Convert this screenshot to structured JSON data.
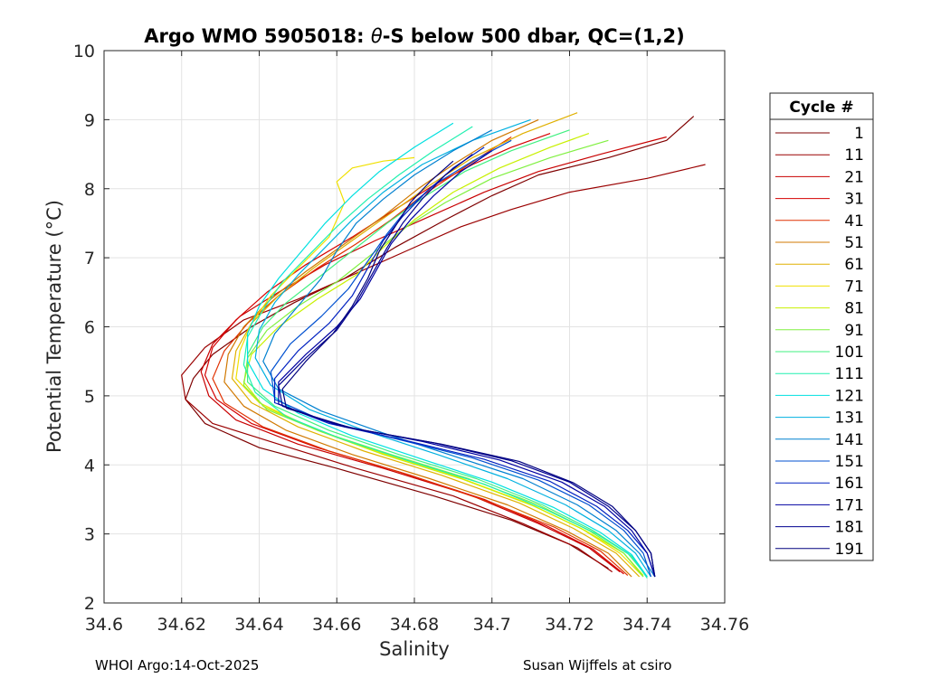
{
  "chart_data": {
    "type": "line",
    "title": "Argo WMO 5905018: θ-S below 500 dbar,  QC=(1,2)",
    "title_prefix": "Argo WMO 5905018: ",
    "title_symbol": "θ",
    "title_suffix": "-S below 500 dbar,  QC=(1,2)",
    "xlabel": "Salinity",
    "ylabel": "Potential Temperature (°C)",
    "xlim": [
      34.6,
      34.76
    ],
    "ylim": [
      2,
      10
    ],
    "xticks": [
      34.6,
      34.62,
      34.64,
      34.66,
      34.68,
      34.7,
      34.72,
      34.74,
      34.76
    ],
    "xtick_labels": [
      "34.6",
      "34.62",
      "34.64",
      "34.66",
      "34.68",
      "34.7",
      "34.72",
      "34.74",
      "34.76"
    ],
    "yticks": [
      2,
      3,
      4,
      5,
      6,
      7,
      8,
      9,
      10
    ],
    "ytick_labels": [
      "2",
      "3",
      "4",
      "5",
      "6",
      "7",
      "8",
      "9",
      "10"
    ],
    "grid": true,
    "legend": {
      "title": "Cycle #",
      "placement": "outside-right",
      "entries": [
        {
          "label": "1",
          "color": "#7f0000"
        },
        {
          "label": "11",
          "color": "#9a0000"
        },
        {
          "label": "21",
          "color": "#c80000"
        },
        {
          "label": "31",
          "color": "#d40000"
        },
        {
          "label": "41",
          "color": "#e03000"
        },
        {
          "label": "51",
          "color": "#d07800"
        },
        {
          "label": "61",
          "color": "#e0b000"
        },
        {
          "label": "71",
          "color": "#f0e000"
        },
        {
          "label": "81",
          "color": "#c8f000"
        },
        {
          "label": "91",
          "color": "#80f040"
        },
        {
          "label": "101",
          "color": "#40f080"
        },
        {
          "label": "111",
          "color": "#20f0b0"
        },
        {
          "label": "121",
          "color": "#00e0e0"
        },
        {
          "label": "131",
          "color": "#00b0e0"
        },
        {
          "label": "141",
          "color": "#0080d0"
        },
        {
          "label": "151",
          "color": "#0050d0"
        },
        {
          "label": "161",
          "color": "#0020c0"
        },
        {
          "label": "171",
          "color": "#0000a0"
        },
        {
          "label": "181",
          "color": "#000090"
        },
        {
          "label": "191",
          "color": "#00007f"
        }
      ]
    },
    "series": [
      {
        "name": "1",
        "color": "#7f0000",
        "x": [
          34.752,
          34.745,
          34.73,
          34.712,
          34.7,
          34.688,
          34.675,
          34.662,
          34.649,
          34.638,
          34.628,
          34.623,
          34.621,
          34.626,
          34.64,
          34.66,
          34.685,
          34.705,
          34.72,
          34.73
        ],
        "y": [
          9.05,
          8.7,
          8.45,
          8.2,
          7.9,
          7.55,
          7.15,
          6.7,
          6.35,
          6.0,
          5.6,
          5.25,
          4.95,
          4.6,
          4.25,
          3.95,
          3.55,
          3.2,
          2.85,
          2.5
        ]
      },
      {
        "name": "11",
        "color": "#9a0000",
        "x": [
          34.755,
          34.74,
          34.72,
          34.705,
          34.692,
          34.678,
          34.664,
          34.65,
          34.636,
          34.626,
          34.62,
          34.621,
          34.628,
          34.645,
          34.665,
          34.69,
          34.708,
          34.722,
          34.731
        ],
        "y": [
          8.35,
          8.15,
          7.95,
          7.7,
          7.45,
          7.1,
          6.75,
          6.4,
          6.1,
          5.7,
          5.3,
          4.95,
          4.6,
          4.3,
          3.95,
          3.55,
          3.15,
          2.8,
          2.45
        ]
      },
      {
        "name": "21",
        "color": "#c80000",
        "x": [
          34.745,
          34.728,
          34.712,
          34.698,
          34.684,
          34.67,
          34.657,
          34.645,
          34.635,
          34.628,
          34.625,
          34.627,
          34.634,
          34.65,
          34.672,
          34.695,
          34.712,
          34.725,
          34.733
        ],
        "y": [
          8.75,
          8.5,
          8.25,
          7.95,
          7.6,
          7.25,
          6.9,
          6.5,
          6.15,
          5.75,
          5.35,
          5.0,
          4.65,
          4.3,
          3.95,
          3.55,
          3.15,
          2.8,
          2.45
        ]
      },
      {
        "name": "31",
        "color": "#d40000",
        "x": [
          34.715,
          34.705,
          34.695,
          34.685,
          34.675,
          34.664,
          34.652,
          34.642,
          34.634,
          34.628,
          34.626,
          34.629,
          34.638,
          34.655,
          34.676,
          34.698,
          34.714,
          34.726,
          34.734
        ],
        "y": [
          8.8,
          8.6,
          8.35,
          8.05,
          7.7,
          7.3,
          6.9,
          6.5,
          6.1,
          5.7,
          5.3,
          4.95,
          4.6,
          4.25,
          3.9,
          3.5,
          3.12,
          2.78,
          2.42
        ]
      },
      {
        "name": "41",
        "color": "#e03000",
        "x": [
          34.705,
          34.698,
          34.69,
          34.682,
          34.674,
          34.665,
          34.655,
          34.645,
          34.637,
          34.631,
          34.628,
          34.631,
          34.641,
          34.658,
          34.679,
          34.7,
          34.716,
          34.728,
          34.735
        ],
        "y": [
          8.75,
          8.5,
          8.2,
          7.9,
          7.55,
          7.2,
          6.85,
          6.45,
          6.05,
          5.65,
          5.25,
          4.9,
          4.55,
          4.2,
          3.85,
          3.45,
          3.1,
          2.75,
          2.4
        ]
      },
      {
        "name": "51",
        "color": "#d07800",
        "x": [
          34.712,
          34.7,
          34.69,
          34.681,
          34.672,
          34.662,
          34.652,
          34.643,
          34.636,
          34.632,
          34.631,
          34.636,
          34.647,
          34.664,
          34.684,
          34.704,
          34.719,
          34.73,
          34.736
        ],
        "y": [
          9.0,
          8.7,
          8.35,
          8.0,
          7.6,
          7.2,
          6.8,
          6.4,
          6.0,
          5.6,
          5.2,
          4.85,
          4.5,
          4.15,
          3.8,
          3.42,
          3.05,
          2.72,
          2.38
        ]
      },
      {
        "name": "61",
        "color": "#e0b000",
        "x": [
          34.722,
          34.708,
          34.695,
          34.684,
          34.674,
          34.664,
          34.654,
          34.645,
          34.638,
          34.634,
          34.633,
          34.638,
          34.65,
          34.667,
          34.687,
          34.707,
          34.721,
          34.732,
          34.738
        ],
        "y": [
          9.1,
          8.8,
          8.45,
          8.05,
          7.65,
          7.25,
          6.85,
          6.45,
          6.05,
          5.65,
          5.25,
          4.9,
          4.55,
          4.2,
          3.85,
          3.45,
          3.08,
          2.72,
          2.38
        ]
      },
      {
        "name": "71",
        "color": "#f0e000",
        "x": [
          34.68,
          34.672,
          34.664,
          34.66,
          34.662,
          34.658,
          34.65,
          34.643,
          34.638,
          34.635,
          34.634,
          34.64,
          34.653,
          34.67,
          34.69,
          34.709,
          34.723,
          34.733,
          34.739
        ],
        "y": [
          8.45,
          8.4,
          8.3,
          8.1,
          7.8,
          7.3,
          6.85,
          6.45,
          6.05,
          5.65,
          5.25,
          4.9,
          4.55,
          4.2,
          3.85,
          3.45,
          3.08,
          2.72,
          2.38
        ]
      },
      {
        "name": "81",
        "color": "#c8f000",
        "x": [
          34.725,
          34.715,
          34.702,
          34.69,
          34.68,
          34.672,
          34.665,
          34.655,
          34.645,
          34.638,
          34.636,
          34.641,
          34.655,
          34.672,
          34.692,
          34.711,
          34.724,
          34.734,
          34.739
        ],
        "y": [
          8.8,
          8.6,
          8.3,
          7.95,
          7.55,
          7.15,
          6.75,
          6.4,
          6.0,
          5.6,
          5.2,
          4.85,
          4.5,
          4.15,
          3.8,
          3.4,
          3.05,
          2.72,
          2.4
        ]
      },
      {
        "name": "91",
        "color": "#80f040",
        "x": [
          34.73,
          34.715,
          34.7,
          34.688,
          34.678,
          34.669,
          34.66,
          34.65,
          34.642,
          34.637,
          34.636,
          34.642,
          34.656,
          34.674,
          34.694,
          34.712,
          34.725,
          34.734,
          34.739
        ],
        "y": [
          8.7,
          8.45,
          8.15,
          7.8,
          7.45,
          7.05,
          6.65,
          6.3,
          5.95,
          5.55,
          5.15,
          4.8,
          4.48,
          4.15,
          3.8,
          3.42,
          3.05,
          2.72,
          2.38
        ]
      },
      {
        "name": "101",
        "color": "#40f080",
        "x": [
          34.72,
          34.705,
          34.693,
          34.683,
          34.673,
          34.664,
          34.655,
          34.647,
          34.641,
          34.637,
          34.637,
          34.644,
          34.658,
          34.676,
          34.696,
          34.713,
          34.726,
          34.735,
          34.74
        ],
        "y": [
          8.85,
          8.55,
          8.25,
          7.9,
          7.5,
          7.1,
          6.7,
          6.35,
          6.0,
          5.6,
          5.2,
          4.85,
          4.5,
          4.15,
          3.8,
          3.42,
          3.05,
          2.72,
          2.38
        ]
      },
      {
        "name": "111",
        "color": "#20f0b0",
        "x": [
          34.695,
          34.685,
          34.676,
          34.668,
          34.66,
          34.653,
          34.646,
          34.641,
          34.637,
          34.636,
          34.639,
          34.647,
          34.661,
          34.679,
          34.698,
          34.714,
          34.727,
          34.736,
          34.74
        ],
        "y": [
          8.9,
          8.55,
          8.2,
          7.85,
          7.45,
          7.05,
          6.65,
          6.25,
          5.85,
          5.45,
          5.05,
          4.7,
          4.38,
          4.05,
          3.72,
          3.35,
          3.0,
          2.68,
          2.36
        ]
      },
      {
        "name": "121",
        "color": "#00e0e0",
        "x": [
          34.69,
          34.68,
          34.671,
          34.664,
          34.657,
          34.651,
          34.645,
          34.64,
          34.637,
          34.637,
          34.641,
          34.65,
          34.664,
          34.681,
          34.7,
          34.716,
          34.728,
          34.736,
          34.74
        ],
        "y": [
          8.95,
          8.6,
          8.25,
          7.9,
          7.5,
          7.1,
          6.7,
          6.3,
          5.9,
          5.5,
          5.1,
          4.75,
          4.42,
          4.1,
          3.75,
          3.38,
          3.02,
          2.7,
          2.38
        ]
      },
      {
        "name": "131",
        "color": "#00b0e0",
        "x": [
          34.71,
          34.695,
          34.682,
          34.672,
          34.664,
          34.657,
          34.65,
          34.644,
          34.64,
          34.639,
          34.643,
          34.653,
          34.668,
          34.686,
          34.704,
          34.719,
          34.73,
          34.737,
          34.741
        ],
        "y": [
          9.0,
          8.7,
          8.35,
          7.95,
          7.55,
          7.15,
          6.75,
          6.35,
          5.95,
          5.55,
          5.15,
          4.8,
          4.48,
          4.15,
          3.8,
          3.42,
          3.05,
          2.72,
          2.38
        ]
      },
      {
        "name": "141",
        "color": "#0080d0",
        "x": [
          34.7,
          34.69,
          34.68,
          34.672,
          34.665,
          34.66,
          34.656,
          34.65,
          34.644,
          34.641,
          34.645,
          34.656,
          34.672,
          34.69,
          34.708,
          34.722,
          34.732,
          34.738,
          34.742
        ],
        "y": [
          8.85,
          8.55,
          8.2,
          7.85,
          7.5,
          7.1,
          6.7,
          6.3,
          5.9,
          5.5,
          5.1,
          4.78,
          4.46,
          4.13,
          3.8,
          3.42,
          3.05,
          2.72,
          2.38
        ]
      },
      {
        "name": "151",
        "color": "#0050d0",
        "x": [
          34.705,
          34.695,
          34.685,
          34.678,
          34.673,
          34.668,
          34.663,
          34.656,
          34.648,
          34.643,
          34.644,
          34.656,
          34.675,
          34.695,
          34.712,
          34.725,
          34.734,
          34.739,
          34.741
        ],
        "y": [
          8.7,
          8.4,
          8.05,
          7.7,
          7.35,
          6.95,
          6.55,
          6.15,
          5.75,
          5.35,
          4.95,
          4.65,
          4.38,
          4.1,
          3.78,
          3.42,
          3.05,
          2.72,
          2.38
        ]
      },
      {
        "name": "161",
        "color": "#0020c0",
        "x": [
          34.698,
          34.69,
          34.683,
          34.677,
          34.672,
          34.668,
          34.664,
          34.658,
          34.65,
          34.644,
          34.644,
          34.658,
          34.678,
          34.698,
          34.715,
          34.727,
          34.735,
          34.74,
          34.742
        ],
        "y": [
          8.6,
          8.3,
          7.95,
          7.6,
          7.25,
          6.85,
          6.45,
          6.05,
          5.65,
          5.25,
          4.9,
          4.6,
          4.35,
          4.08,
          3.76,
          3.4,
          3.05,
          2.72,
          2.38
        ]
      },
      {
        "name": "171",
        "color": "#0000a0",
        "x": [
          34.7,
          34.692,
          34.685,
          34.679,
          34.674,
          34.67,
          34.666,
          34.66,
          34.652,
          34.645,
          34.645,
          34.66,
          34.682,
          34.702,
          34.718,
          34.729,
          34.736,
          34.74,
          34.742
        ],
        "y": [
          8.55,
          8.25,
          7.9,
          7.55,
          7.2,
          6.8,
          6.4,
          6.0,
          5.6,
          5.2,
          4.88,
          4.58,
          4.34,
          4.07,
          3.75,
          3.4,
          3.05,
          2.72,
          2.38
        ]
      },
      {
        "name": "181",
        "color": "#000090",
        "x": [
          34.695,
          34.688,
          34.682,
          34.677,
          34.673,
          34.669,
          34.665,
          34.66,
          34.652,
          34.645,
          34.646,
          34.662,
          34.685,
          34.705,
          34.72,
          34.73,
          34.737,
          34.741,
          34.742
        ],
        "y": [
          8.5,
          8.2,
          7.85,
          7.5,
          7.15,
          6.75,
          6.35,
          5.95,
          5.55,
          5.15,
          4.85,
          4.55,
          4.32,
          4.06,
          3.75,
          3.4,
          3.05,
          2.72,
          2.38
        ]
      },
      {
        "name": "191",
        "color": "#00007f",
        "x": [
          34.69,
          34.684,
          34.679,
          34.675,
          34.671,
          34.668,
          34.664,
          34.659,
          34.652,
          34.646,
          34.647,
          34.664,
          34.687,
          34.707,
          34.721,
          34.731,
          34.737,
          34.741,
          34.742
        ],
        "y": [
          8.4,
          8.1,
          7.8,
          7.45,
          7.1,
          6.7,
          6.3,
          5.9,
          5.5,
          5.1,
          4.82,
          4.53,
          4.3,
          4.05,
          3.74,
          3.4,
          3.05,
          2.72,
          2.38
        ]
      }
    ]
  },
  "footer": {
    "left": "WHOI Argo:14-Oct-2025",
    "right": "Susan Wijffels at csiro"
  }
}
